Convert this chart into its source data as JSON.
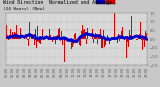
{
  "background_color": "#c8c8c8",
  "plot_bg_color": "#d8d8d8",
  "bar_color": "#dd0000",
  "avg_color": "#0000cc",
  "ylim": [
    -1.5,
    1.5
  ],
  "n_points": 288,
  "seed": 7,
  "legend_color1": "#0000cc",
  "legend_color2": "#dd0000",
  "title_fontsize": 3.5,
  "tick_fontsize": 2.5,
  "grid_color": "#bbbbbb",
  "right_ytick_color": "#555555"
}
